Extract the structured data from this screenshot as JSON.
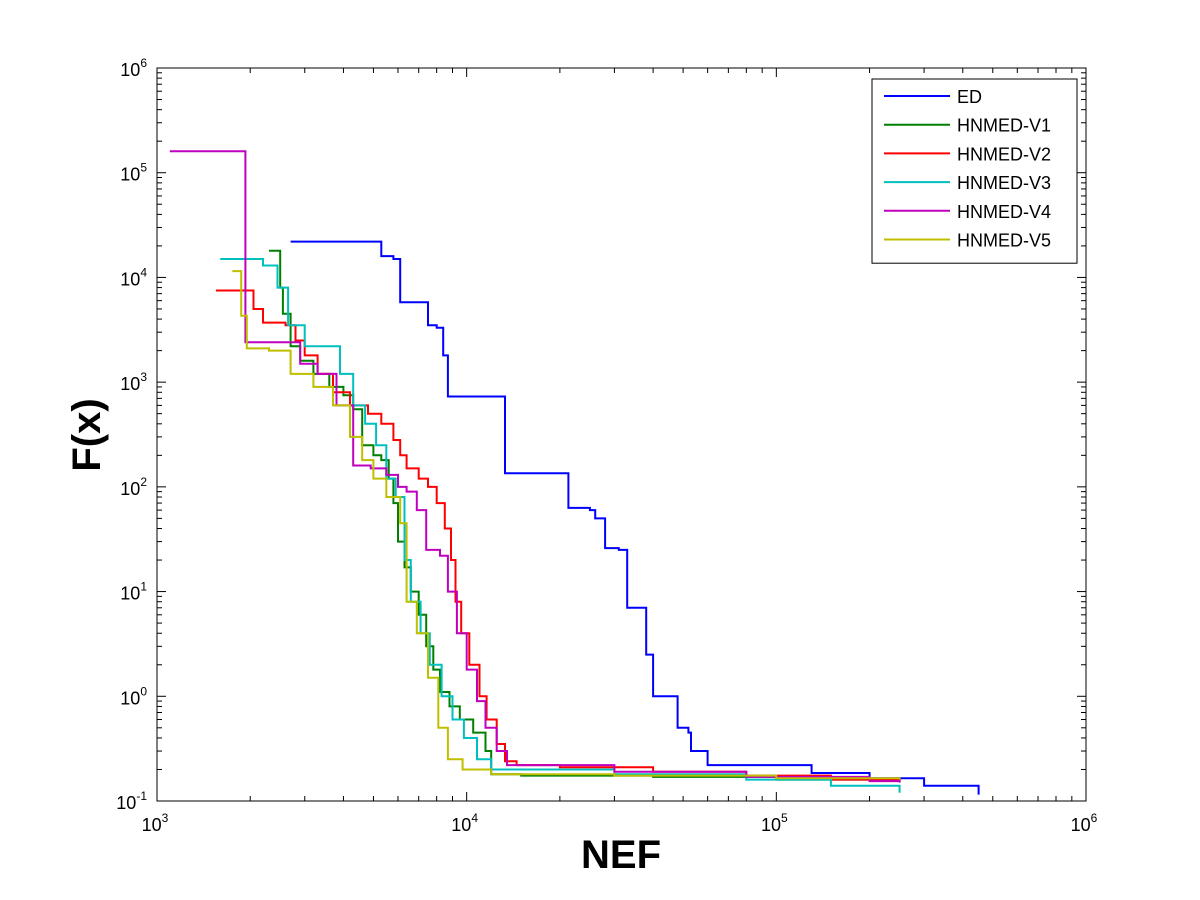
{
  "chart_data": {
    "type": "line",
    "title": "",
    "xlabel": "NEF",
    "ylabel": "F(x)",
    "xscale": "log",
    "yscale": "log",
    "xlim": [
      1000,
      1000000
    ],
    "ylim": [
      0.1,
      1000000
    ],
    "grid": false,
    "legend_position": "top-right",
    "x_ticks": [
      {
        "base": "10",
        "exp": "3"
      },
      {
        "base": "10",
        "exp": "4"
      },
      {
        "base": "10",
        "exp": "5"
      },
      {
        "base": "10",
        "exp": "6"
      }
    ],
    "y_ticks": [
      {
        "base": "10",
        "exp": "-1"
      },
      {
        "base": "10",
        "exp": "0"
      },
      {
        "base": "10",
        "exp": "1"
      },
      {
        "base": "10",
        "exp": "2"
      },
      {
        "base": "10",
        "exp": "3"
      },
      {
        "base": "10",
        "exp": "4"
      },
      {
        "base": "10",
        "exp": "5"
      },
      {
        "base": "10",
        "exp": "6"
      }
    ],
    "series": [
      {
        "name": "ED",
        "color": "#0000ff",
        "points": [
          [
            2700,
            22000
          ],
          [
            5200,
            22000
          ],
          [
            5300,
            16000
          ],
          [
            5800,
            15000
          ],
          [
            6100,
            5800
          ],
          [
            7300,
            5800
          ],
          [
            7500,
            3500
          ],
          [
            8000,
            3300
          ],
          [
            8400,
            1800
          ],
          [
            8700,
            730
          ],
          [
            13100,
            730
          ],
          [
            13300,
            135
          ],
          [
            21000,
            135
          ],
          [
            21300,
            63
          ],
          [
            25000,
            60
          ],
          [
            26000,
            50
          ],
          [
            28000,
            26
          ],
          [
            31000,
            25
          ],
          [
            33000,
            7
          ],
          [
            36000,
            7
          ],
          [
            38000,
            2.5
          ],
          [
            40000,
            1.0
          ],
          [
            47000,
            1.0
          ],
          [
            48000,
            0.5
          ],
          [
            52000,
            0.45
          ],
          [
            53000,
            0.3
          ],
          [
            58000,
            0.3
          ],
          [
            60000,
            0.22
          ],
          [
            90000,
            0.22
          ],
          [
            130000,
            0.185
          ],
          [
            200000,
            0.165
          ],
          [
            300000,
            0.14
          ],
          [
            450000,
            0.115
          ]
        ]
      },
      {
        "name": "HNMED-V1",
        "color": "#007f00",
        "points": [
          [
            2300,
            18000
          ],
          [
            2450,
            18000
          ],
          [
            2500,
            8000
          ],
          [
            2550,
            4500
          ],
          [
            2700,
            2200
          ],
          [
            2900,
            1600
          ],
          [
            3200,
            1200
          ],
          [
            3600,
            900
          ],
          [
            4000,
            750
          ],
          [
            4300,
            550
          ],
          [
            4600,
            250
          ],
          [
            5000,
            200
          ],
          [
            5300,
            180
          ],
          [
            5600,
            120
          ],
          [
            5800,
            70
          ],
          [
            6000,
            30
          ],
          [
            6300,
            17
          ],
          [
            6600,
            10
          ],
          [
            7000,
            6
          ],
          [
            7400,
            3
          ],
          [
            7800,
            1.8
          ],
          [
            8200,
            1.1
          ],
          [
            8800,
            0.8
          ],
          [
            9500,
            0.6
          ],
          [
            10500,
            0.45
          ],
          [
            11500,
            0.3
          ],
          [
            12000,
            0.18
          ],
          [
            15000,
            0.175
          ],
          [
            40000,
            0.17
          ],
          [
            100000,
            0.16
          ],
          [
            250000,
            0.155
          ]
        ]
      },
      {
        "name": "HNMED-V2",
        "color": "#ff0000",
        "points": [
          [
            1550,
            7500
          ],
          [
            1950,
            7500
          ],
          [
            2050,
            5000
          ],
          [
            2200,
            3700
          ],
          [
            2600,
            3500
          ],
          [
            2800,
            2500
          ],
          [
            3000,
            1800
          ],
          [
            3300,
            1200
          ],
          [
            3700,
            800
          ],
          [
            4200,
            600
          ],
          [
            4800,
            500
          ],
          [
            5300,
            400
          ],
          [
            5800,
            280
          ],
          [
            6100,
            200
          ],
          [
            6400,
            150
          ],
          [
            7000,
            120
          ],
          [
            7500,
            100
          ],
          [
            8000,
            70
          ],
          [
            8500,
            40
          ],
          [
            8900,
            20
          ],
          [
            9200,
            8
          ],
          [
            9600,
            4
          ],
          [
            10200,
            2
          ],
          [
            11000,
            1.0
          ],
          [
            11600,
            0.6
          ],
          [
            12500,
            0.35
          ],
          [
            13300,
            0.24
          ],
          [
            14500,
            0.22
          ],
          [
            20000,
            0.21
          ],
          [
            40000,
            0.19
          ],
          [
            80000,
            0.175
          ],
          [
            150000,
            0.16
          ],
          [
            250000,
            0.155
          ]
        ]
      },
      {
        "name": "HNMED-V3",
        "color": "#00bfbf",
        "points": [
          [
            1600,
            15000
          ],
          [
            2100,
            15000
          ],
          [
            2200,
            13000
          ],
          [
            2450,
            8000
          ],
          [
            2650,
            3500
          ],
          [
            3000,
            2200
          ],
          [
            3600,
            2200
          ],
          [
            3900,
            1200
          ],
          [
            4300,
            600
          ],
          [
            4700,
            400
          ],
          [
            5100,
            250
          ],
          [
            5500,
            120
          ],
          [
            5900,
            80
          ],
          [
            6300,
            20
          ],
          [
            6600,
            8
          ],
          [
            7100,
            4
          ],
          [
            7600,
            2
          ],
          [
            8300,
            1
          ],
          [
            9000,
            0.6
          ],
          [
            9800,
            0.4
          ],
          [
            10800,
            0.25
          ],
          [
            12000,
            0.2
          ],
          [
            30000,
            0.18
          ],
          [
            80000,
            0.16
          ],
          [
            150000,
            0.14
          ],
          [
            250000,
            0.12
          ]
        ]
      },
      {
        "name": "HNMED-V4",
        "color": "#bf00bf",
        "points": [
          [
            1100,
            160000
          ],
          [
            1900,
            160000
          ],
          [
            1930,
            2400
          ],
          [
            2700,
            2400
          ],
          [
            2900,
            1500
          ],
          [
            3300,
            1200
          ],
          [
            3800,
            600
          ],
          [
            4300,
            160
          ],
          [
            4900,
            150
          ],
          [
            5500,
            130
          ],
          [
            6000,
            100
          ],
          [
            6400,
            90
          ],
          [
            6900,
            60
          ],
          [
            7400,
            25
          ],
          [
            8200,
            22
          ],
          [
            8700,
            10
          ],
          [
            9300,
            4
          ],
          [
            10000,
            1.8
          ],
          [
            10800,
            0.9
          ],
          [
            11500,
            0.5
          ],
          [
            12500,
            0.3
          ],
          [
            13500,
            0.22
          ],
          [
            30000,
            0.19
          ],
          [
            80000,
            0.17
          ],
          [
            200000,
            0.155
          ],
          [
            250000,
            0.15
          ]
        ]
      },
      {
        "name": "HNMED-V5",
        "color": "#bfbf00",
        "points": [
          [
            1750,
            11500
          ],
          [
            1850,
            11500
          ],
          [
            1870,
            4300
          ],
          [
            1950,
            2100
          ],
          [
            2300,
            2000
          ],
          [
            2700,
            1200
          ],
          [
            3200,
            900
          ],
          [
            3700,
            600
          ],
          [
            4200,
            300
          ],
          [
            4600,
            180
          ],
          [
            5000,
            120
          ],
          [
            5500,
            80
          ],
          [
            6100,
            45
          ],
          [
            6400,
            8
          ],
          [
            6900,
            4
          ],
          [
            7500,
            1.5
          ],
          [
            8100,
            0.5
          ],
          [
            8700,
            0.25
          ],
          [
            9700,
            0.2
          ],
          [
            12000,
            0.18
          ],
          [
            30000,
            0.175
          ],
          [
            100000,
            0.165
          ],
          [
            250000,
            0.16
          ]
        ]
      }
    ]
  }
}
